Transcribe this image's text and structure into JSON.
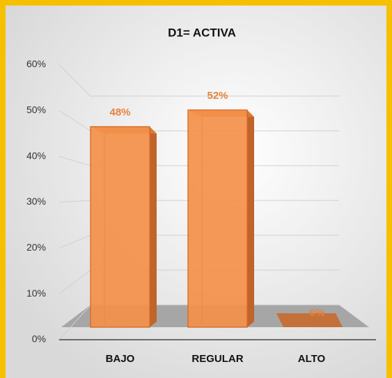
{
  "chart_data": {
    "type": "bar3d",
    "title": "D1= ACTIVA",
    "categories": [
      "BAJO",
      "REGULAR",
      "ALTO"
    ],
    "values": [
      48,
      52,
      0
    ],
    "value_labels": [
      "48%",
      "52%",
      "0%"
    ],
    "color": "#f4914a",
    "ylim": [
      0,
      60
    ],
    "yticks": [
      {
        "value": 0,
        "label": "0%"
      },
      {
        "value": 10,
        "label": "10%"
      },
      {
        "value": 20,
        "label": "20%"
      },
      {
        "value": 30,
        "label": "30%"
      },
      {
        "value": 40,
        "label": "40%"
      },
      {
        "value": 50,
        "label": "50%"
      },
      {
        "value": 60,
        "label": "60%"
      }
    ],
    "grid": true
  }
}
